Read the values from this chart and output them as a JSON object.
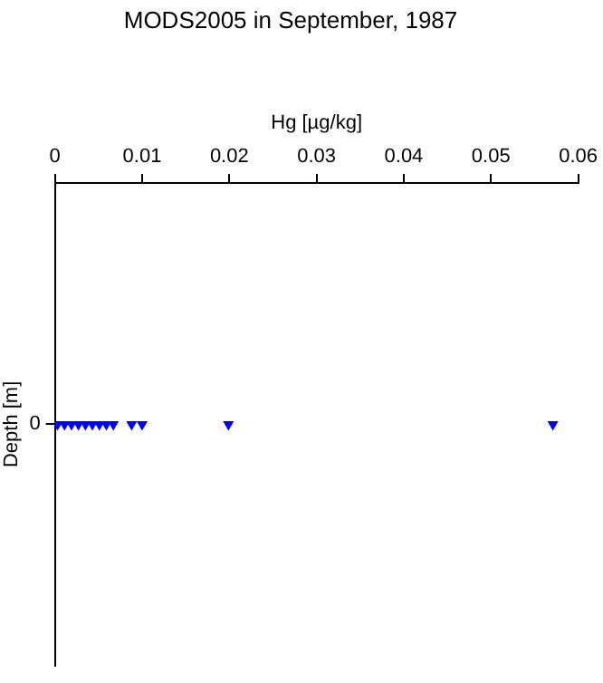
{
  "chart_data": {
    "type": "scatter",
    "orientation": "horizontal",
    "title": "MODS2005 in September, 1987",
    "xlabel": "Hg [µg/kg]",
    "ylabel": "Depth [m]",
    "categories": [
      "0"
    ],
    "series": [
      {
        "color": "#0000ff",
        "values": [
          0.0003
        ]
      },
      {
        "color": "#0000ff",
        "values": [
          0.0011
        ]
      },
      {
        "color": "#0000ff",
        "values": [
          0.0019
        ]
      },
      {
        "color": "#0000ff",
        "values": [
          0.0027
        ]
      },
      {
        "color": "#0000ff",
        "values": [
          0.0035
        ]
      },
      {
        "color": "#0000ff",
        "values": [
          0.0043
        ]
      },
      {
        "color": "#0000ff",
        "values": [
          0.0051
        ]
      },
      {
        "color": "#0000ff",
        "values": [
          0.0059
        ]
      },
      {
        "color": "#0000ff",
        "values": [
          0.0067
        ]
      },
      {
        "color": "#0000ff",
        "values": [
          0.0088
        ]
      },
      {
        "color": "#0000ff",
        "values": [
          0.01
        ]
      },
      {
        "color": "#0000ff",
        "values": [
          0.0199
        ]
      },
      {
        "color": "#0000ff",
        "values": [
          0.0571
        ]
      }
    ],
    "marker": "triangle",
    "xlim": [
      0,
      0.06
    ],
    "xticks": [
      0,
      0.01,
      0.02,
      0.03,
      0.04,
      0.05,
      0.06
    ],
    "grid": false,
    "legend": false
  }
}
